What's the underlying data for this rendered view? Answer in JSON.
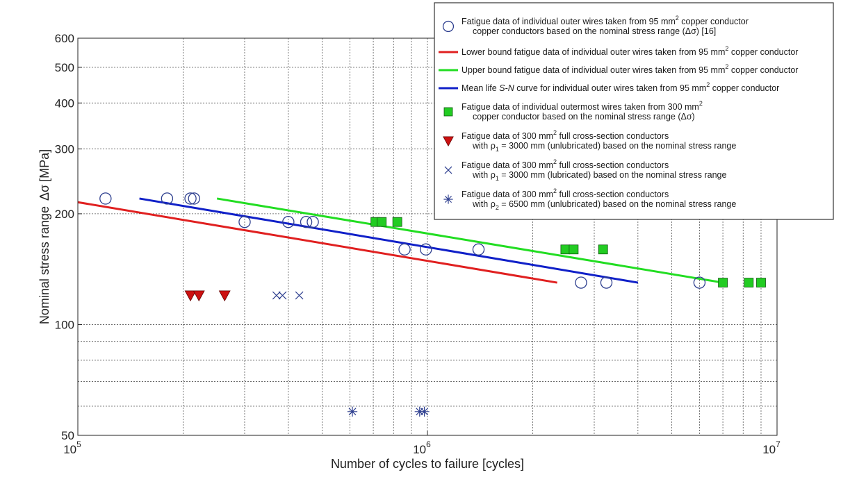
{
  "chart_data": {
    "type": "scatter",
    "x_scale": "log",
    "y_scale": "log",
    "xlim": [
      100000,
      10000000
    ],
    "ylim": [
      50,
      600
    ],
    "grid": true,
    "legend_position": "top-right",
    "xlabel": "Number of cycles to failure [cycles]",
    "ylabel": {
      "text": "Nominal stress range",
      "symbol": "Δσ",
      "unit": "[MPa]"
    },
    "x_ticks": [
      {
        "base": "10",
        "exp": "5",
        "value": 100000
      },
      {
        "base": "10",
        "exp": "6",
        "value": 1000000
      },
      {
        "base": "10",
        "exp": "7",
        "value": 10000000
      }
    ],
    "y_ticks": [
      {
        "label": "50",
        "value": 50
      },
      {
        "label": "100",
        "value": 100
      },
      {
        "label": "200",
        "value": 200
      },
      {
        "label": "300",
        "value": 300
      },
      {
        "label": "400",
        "value": 400
      },
      {
        "label": "500",
        "value": 500
      },
      {
        "label": "600",
        "value": 600
      }
    ],
    "series": [
      {
        "marker": "open-circle",
        "color": "#2e3f8f",
        "legend": [
          "Fatigue data of individual outer wires taken from 95 mm",
          "2",
          " copper conductor",
          "copper conductors based on the nominal stress range  (Δσ) [16]"
        ],
        "x": [
          120000,
          180000,
          210000,
          215000,
          300000,
          400000,
          450000,
          470000,
          860000,
          990000,
          1400000,
          2750000,
          3250000,
          6000000
        ],
        "y": [
          220,
          220,
          220,
          220,
          190,
          190,
          190,
          190,
          160,
          160,
          160,
          130,
          130,
          130
        ]
      },
      {
        "marker": "line",
        "color": "#e02020",
        "legend": [
          "Lower bound fatigue data of individual outer wires taken from 95 mm",
          "2",
          " copper conductor"
        ],
        "x": [
          100000,
          2350000
        ],
        "y": [
          215,
          130
        ]
      },
      {
        "marker": "line",
        "color": "#22dd22",
        "legend": [
          "Upper bound fatigue data of individual outer wires taken from 95 mm",
          "2",
          " copper conductor"
        ],
        "x": [
          250000,
          7000000
        ],
        "y": [
          220,
          130
        ]
      },
      {
        "marker": "line",
        "color": "#1020c8",
        "legend": [
          "Mean life ",
          "S-N",
          " curve for individual outer wires taken from 95 mm",
          "2",
          " copper conductor"
        ],
        "x": [
          150000,
          4000000
        ],
        "y": [
          220,
          130
        ]
      },
      {
        "marker": "filled-square",
        "color": "#22cc22",
        "legend": [
          "Fatigue data of individual outermost wires taken from 300 mm",
          "2",
          "",
          "copper conductor based on the nominal stress range  (Δσ)"
        ],
        "x": [
          710000,
          740000,
          820000,
          2480000,
          2620000,
          3180000,
          7000000,
          8300000,
          9000000
        ],
        "y": [
          190,
          190,
          190,
          160,
          160,
          160,
          130,
          130,
          130
        ]
      },
      {
        "marker": "filled-triangle-down",
        "color": "#cc1111",
        "legend": [
          "Fatigue data of 300 mm",
          "2",
          " full cross-section conductors",
          "with ρ",
          "1",
          " = 3000 mm (unlubricated) based on the nominal stress range"
        ],
        "x": [
          210000,
          222000,
          263000
        ],
        "y": [
          120,
          120,
          120
        ]
      },
      {
        "marker": "x-cross",
        "color": "#2e3f8f",
        "legend": [
          "Fatigue data of 300 mm",
          "2",
          " full cross-section conductors",
          "with ρ",
          "1",
          " = 3000 mm (lubricated) based on the nominal stress range"
        ],
        "x": [
          370000,
          385000,
          430000
        ],
        "y": [
          120,
          120,
          120
        ]
      },
      {
        "marker": "asterisk",
        "color": "#2e3f8f",
        "legend": [
          "Fatigue data of 300 mm",
          "2",
          " full cross-section conductors",
          "with ρ",
          "2",
          " = 6500 mm (unlubricated) based on the nominal stress range"
        ],
        "x": [
          610000,
          950000,
          980000
        ],
        "y": [
          58,
          58,
          58
        ]
      }
    ]
  }
}
